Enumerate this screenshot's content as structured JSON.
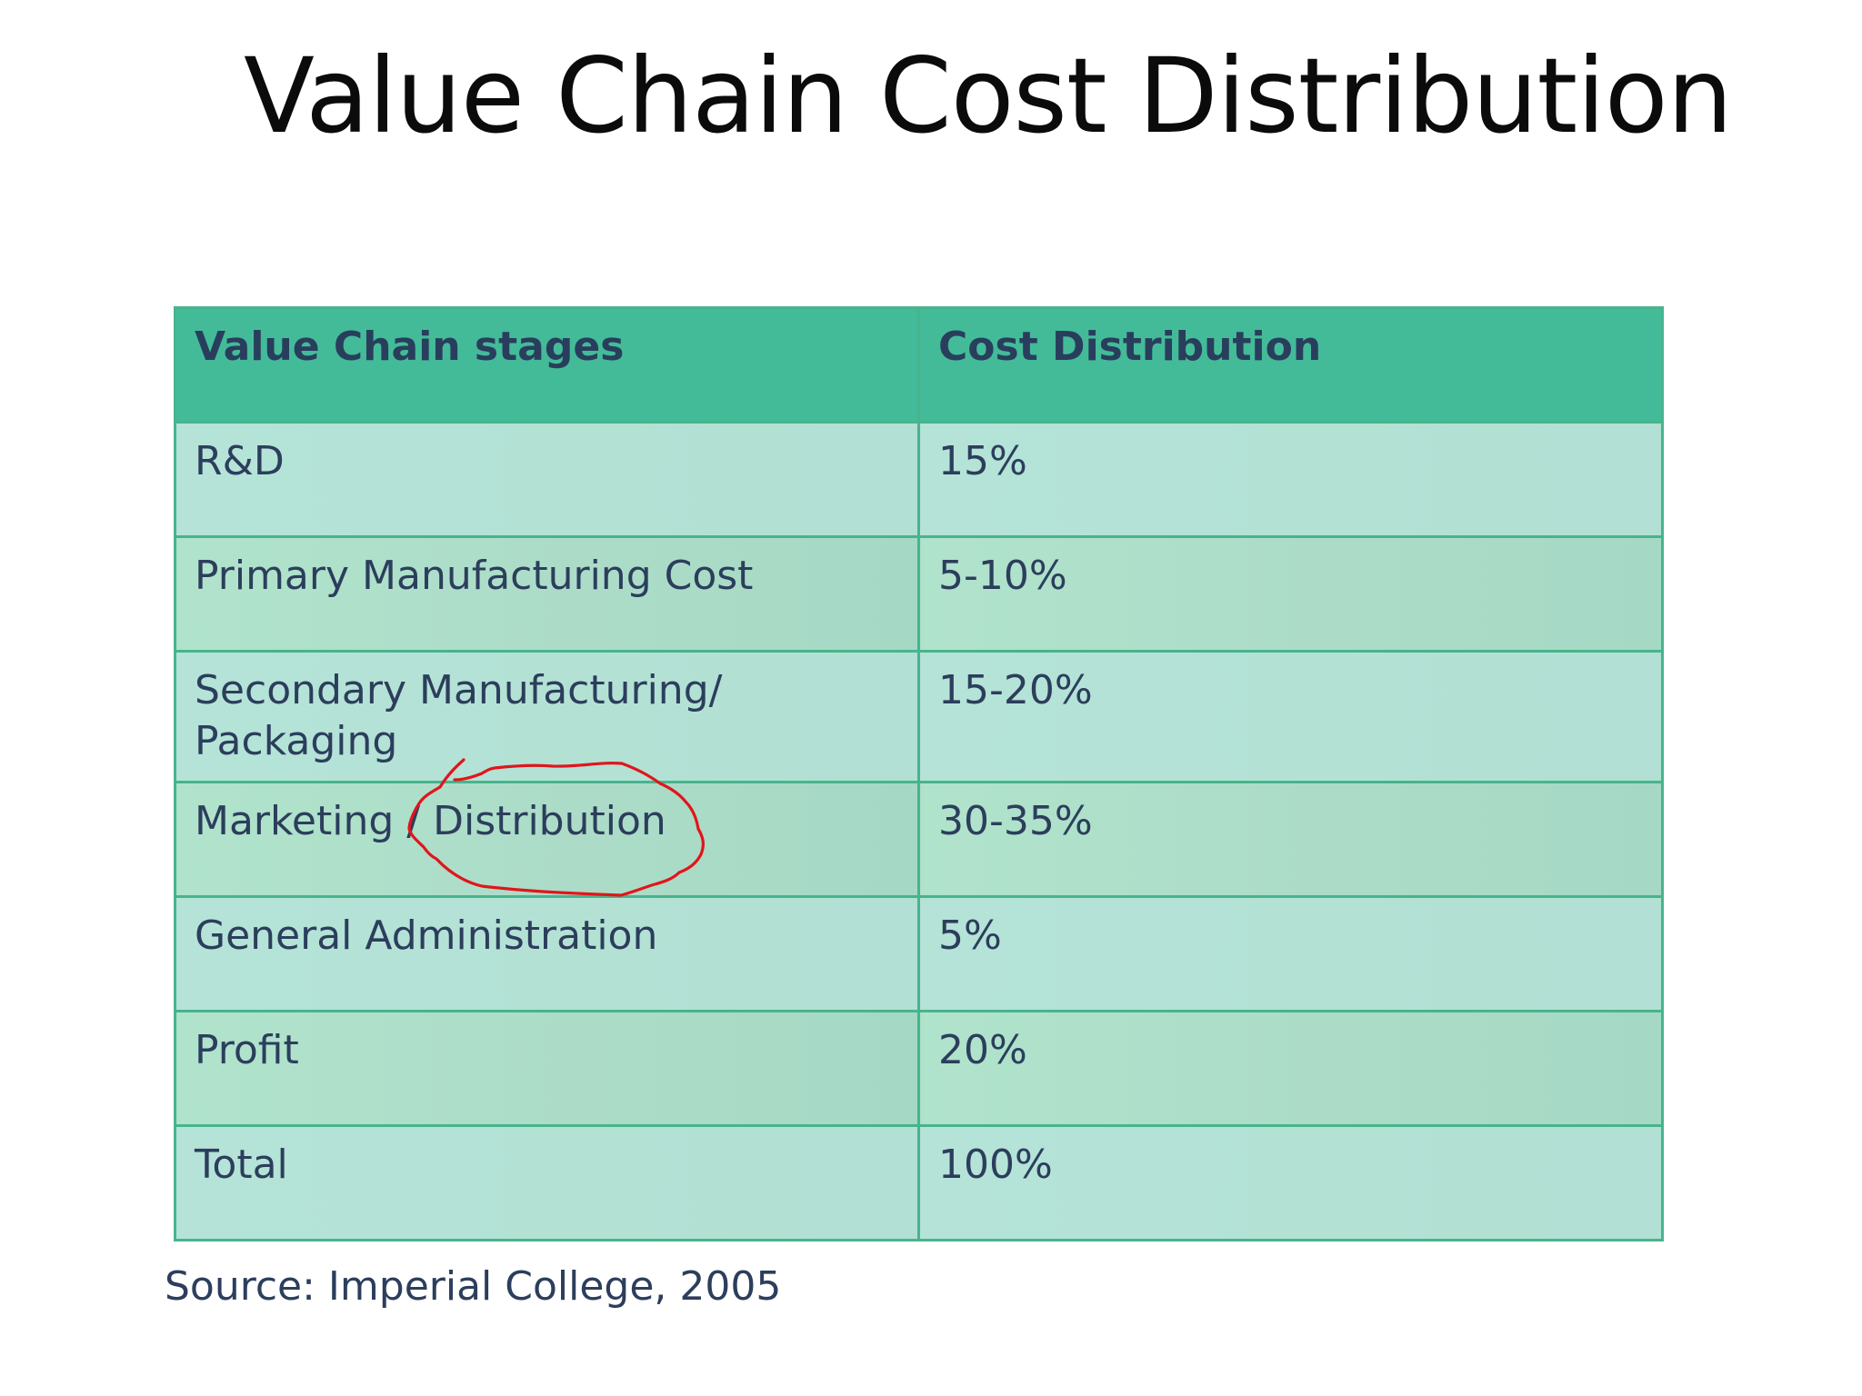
{
  "slide": {
    "title": "Value Chain Cost Distribution",
    "source": "Source: Imperial College, 2005"
  },
  "table": {
    "headers": [
      "Value Chain stages",
      "Cost Distribution"
    ],
    "rows": [
      {
        "stage": "R&D",
        "cost": "15%"
      },
      {
        "stage": "Primary Manufacturing Cost",
        "cost": "5-10%"
      },
      {
        "stage": "Secondary Manufacturing/ Packaging",
        "cost": "15-20%"
      },
      {
        "stage": "Marketing / Distribution",
        "cost": "30-35%"
      },
      {
        "stage": "General Administration",
        "cost": "5%"
      },
      {
        "stage": "Profit",
        "cost": "20%"
      },
      {
        "stage": "Total",
        "cost": "100%"
      }
    ]
  },
  "colors": {
    "header_bg": "#43bb99",
    "cell_bg": "#b4e2d6",
    "border": "#48b48c",
    "text": "#2c3e5c",
    "annotation": "#e0161b"
  },
  "annotation": {
    "shape": "circle-around-word",
    "target": "Distribution"
  }
}
